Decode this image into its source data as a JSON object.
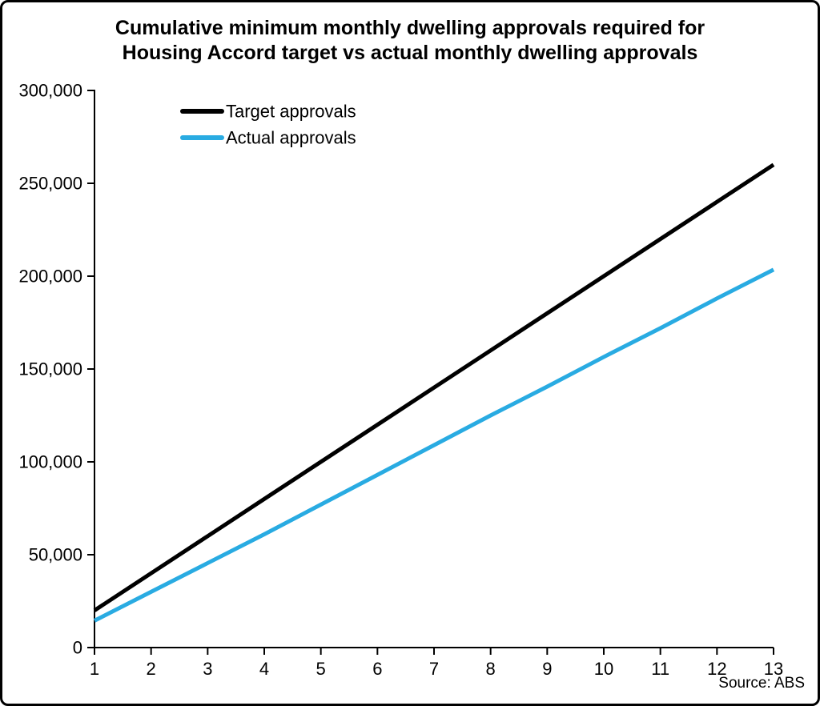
{
  "title": {
    "line1": "Cumulative minimum monthly dwelling approvals required for",
    "line2": "Housing Accord target vs actual monthly dwelling approvals"
  },
  "source": "Source: ABS",
  "colors": {
    "target_line": "#000000",
    "actual_line": "#29ABE2",
    "axis": "#000000"
  },
  "chart_data": {
    "type": "line",
    "title": "Cumulative minimum monthly dwelling approvals required for Housing Accord target vs actual monthly dwelling approvals",
    "xlabel": "",
    "ylabel": "",
    "x": [
      1,
      2,
      3,
      4,
      5,
      6,
      7,
      8,
      9,
      10,
      11,
      12,
      13
    ],
    "xlim": [
      1,
      13
    ],
    "ylim": [
      0,
      300000
    ],
    "ytick_step": 50000,
    "ytick_labels": [
      "0",
      "50,000",
      "100,000",
      "150,000",
      "200,000",
      "250,000",
      "300,000"
    ],
    "grid": false,
    "legend_position": "top-left-inside",
    "series": [
      {
        "name": "Target approvals",
        "color": "#000000",
        "values": [
          20000,
          40000,
          60000,
          80000,
          100000,
          120000,
          140000,
          160000,
          180000,
          200000,
          220000,
          240000,
          260000
        ]
      },
      {
        "name": "Actual approvals",
        "color": "#29ABE2",
        "values": [
          14500,
          30000,
          45500,
          61000,
          77000,
          93000,
          109000,
          125000,
          140500,
          156500,
          172000,
          188000,
          203500
        ]
      }
    ],
    "source": "Source: ABS"
  }
}
